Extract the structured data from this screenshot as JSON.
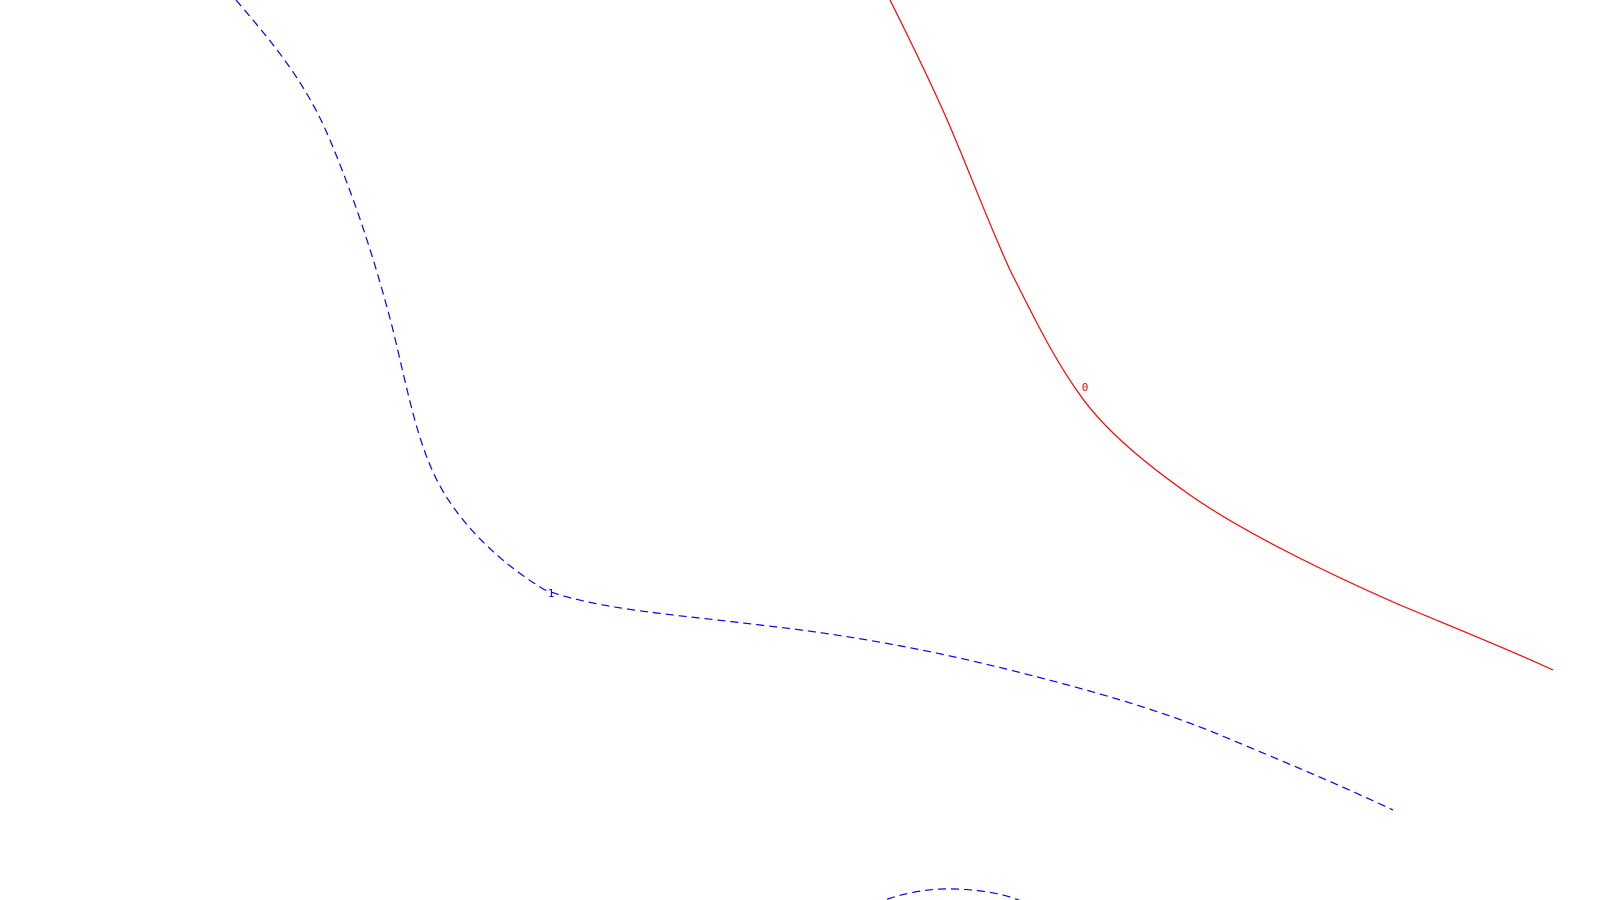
{
  "contours": [
    {
      "id": "contour-0",
      "label": "0",
      "color": "#ff0000",
      "line_style": "solid"
    },
    {
      "id": "contour-1",
      "label": "1",
      "color": "#0000ff",
      "line_style": "dashed"
    },
    {
      "id": "contour-1b",
      "label": "",
      "color": "#0000ff",
      "line_style": "dashed"
    }
  ]
}
